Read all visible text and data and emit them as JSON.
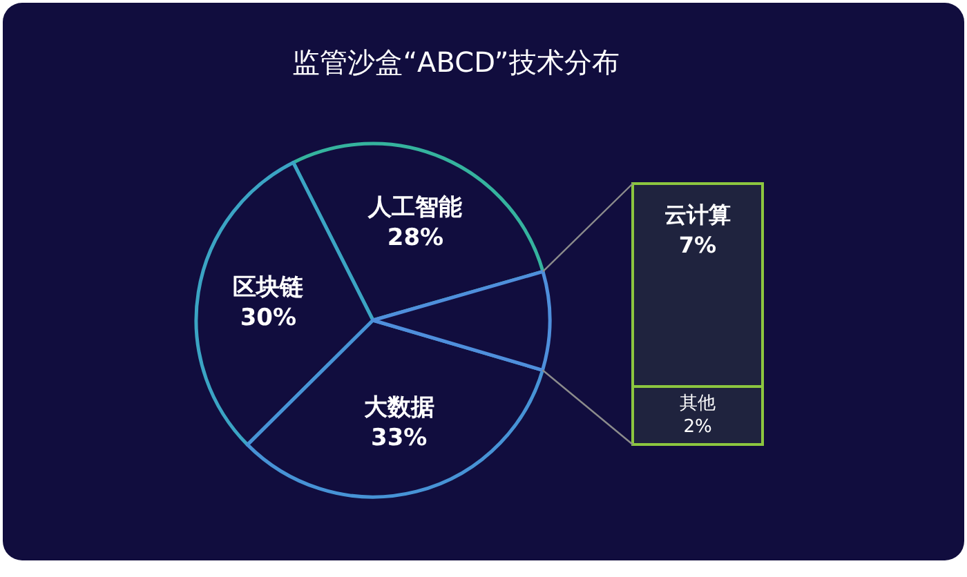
{
  "chart_data": [
    {
      "type": "pie",
      "title": "监管沙盒“ABCD”技术分布",
      "categories": [
        "人工智能",
        "区块链",
        "大数据",
        null
      ],
      "values": [
        28,
        30,
        33,
        9
      ],
      "value_labels": [
        "28%",
        "30%",
        "33%",
        null
      ],
      "colors": [
        "#35b39e",
        "#3ba4c4",
        "#4793d6",
        "#4f8fdc"
      ]
    },
    {
      "type": "bar",
      "stacked": true,
      "categories": [
        null
      ],
      "series": [
        {
          "name": "其他",
          "color": "#8cc63f",
          "values": [
            2
          ],
          "value_labels": [
            "2%"
          ]
        },
        {
          "name": "云计算",
          "color": "#8cc63f",
          "values": [
            7
          ],
          "value_labels": [
            "7%"
          ]
        }
      ]
    }
  ]
}
